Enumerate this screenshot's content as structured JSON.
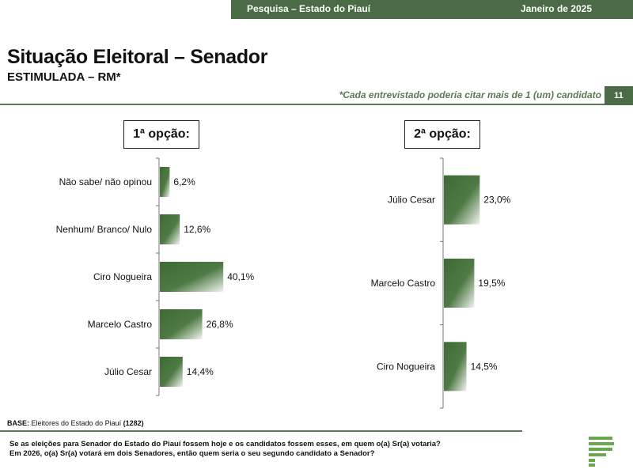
{
  "header": {
    "left": "Pesquisa – Estado do Piauí",
    "right": "Janeiro de 2025"
  },
  "title": "Situação Eleitoral – Senador",
  "subtitle": "ESTIMULADA – RM*",
  "note": "*Cada entrevistado poderia citar mais de 1 (um) candidato",
  "page_number": "11",
  "base_label": "BASE:",
  "base_text": "Eleitores do Estado do Piauí",
  "base_count": "(1282)",
  "question_line1": "Se as eleições para Senador do Estado do Piauí fossem hoje e os candidatos fossem esses, em quem o(a) Sr(a) votaria?",
  "question_line2": "Em 2026, o(a) Sr(a) votará em dois Senadores, então quem seria o seu segundo candidato a Senador?",
  "colors": {
    "brand": "#4a6b45",
    "bar_dark": "#3d6b34",
    "bar_light": "#ffffff",
    "logo": "#6aa84f"
  },
  "chart_data": [
    {
      "type": "bar",
      "orientation": "horizontal",
      "title": "1ª opção:",
      "categories": [
        "Não sabe/ não opinou",
        "Nenhum/ Branco/ Nulo",
        "Ciro Nogueira",
        "Marcelo Castro",
        "Júlio Cesar"
      ],
      "values": [
        6.2,
        12.6,
        40.1,
        26.8,
        14.4
      ],
      "labels": [
        "6,2%",
        "12,6%",
        "40,1%",
        "26,8%",
        "14,4%"
      ],
      "unit": "%"
    },
    {
      "type": "bar",
      "orientation": "horizontal",
      "title": "2ª opção:",
      "categories": [
        "Júlio Cesar",
        "Marcelo Castro",
        "Ciro Nogueira"
      ],
      "values": [
        23.0,
        19.5,
        14.5
      ],
      "labels": [
        "23,0%",
        "19,5%",
        "14,5%"
      ],
      "unit": "%"
    }
  ]
}
